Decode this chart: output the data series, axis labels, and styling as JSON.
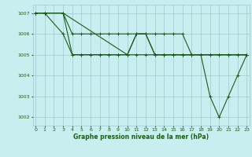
{
  "title": "Graphe pression niveau de la mer (hPa)",
  "bg_color": "#c8eef0",
  "grid_color": "#a0c8d0",
  "line_color": "#1a5c1a",
  "series": [
    {
      "x": [
        0,
        1,
        3,
        4,
        5,
        6,
        7,
        8,
        9,
        10,
        11,
        12,
        13,
        14,
        15,
        16,
        17,
        18,
        19,
        20,
        21,
        22,
        23
      ],
      "y": [
        1007,
        1007,
        1007,
        1005,
        1005,
        1005,
        1005,
        1005,
        1005,
        1005,
        1005,
        1005,
        1005,
        1005,
        1005,
        1005,
        1005,
        1005,
        1003,
        1002,
        1003,
        1004,
        1005
      ]
    },
    {
      "x": [
        0,
        1,
        3,
        4,
        5,
        6,
        7,
        8,
        9,
        10,
        11,
        12,
        13,
        14,
        15,
        16,
        17,
        18,
        19,
        20,
        21,
        22,
        23
      ],
      "y": [
        1007,
        1007,
        1006,
        1005,
        1005,
        1005,
        1005,
        1005,
        1005,
        1005,
        1006,
        1006,
        1005,
        1005,
        1005,
        1005,
        1005,
        1005,
        1005,
        1005,
        1005,
        1005,
        1005
      ]
    },
    {
      "x": [
        0,
        1,
        3,
        4,
        5,
        6,
        7,
        8,
        9,
        10,
        11,
        12,
        13,
        14,
        15,
        16,
        17,
        18,
        19,
        20,
        21,
        22,
        23
      ],
      "y": [
        1007,
        1007,
        1007,
        1006,
        1006,
        1006,
        1006,
        1006,
        1006,
        1006,
        1006,
        1006,
        1006,
        1006,
        1006,
        1006,
        1005,
        1005,
        1005,
        1005,
        1005,
        1005,
        1005
      ]
    },
    {
      "x": [
        0,
        1,
        3,
        10,
        11,
        12,
        13,
        14,
        15,
        16,
        17,
        18,
        23
      ],
      "y": [
        1007,
        1007,
        1007,
        1005,
        1006,
        1006,
        1005,
        1005,
        1005,
        1005,
        1005,
        1005,
        1005
      ]
    }
  ],
  "xlim": [
    -0.3,
    23.3
  ],
  "ylim": [
    1001.6,
    1007.4
  ],
  "yticks": [
    1002,
    1003,
    1004,
    1005,
    1006,
    1007
  ],
  "xticks": [
    0,
    1,
    2,
    3,
    4,
    5,
    6,
    7,
    8,
    9,
    10,
    11,
    12,
    13,
    14,
    15,
    16,
    17,
    18,
    19,
    20,
    21,
    22,
    23
  ],
  "xlabel_fontsize": 5.5,
  "tick_fontsize": 4.5,
  "linewidth": 0.8,
  "markersize": 2.5
}
